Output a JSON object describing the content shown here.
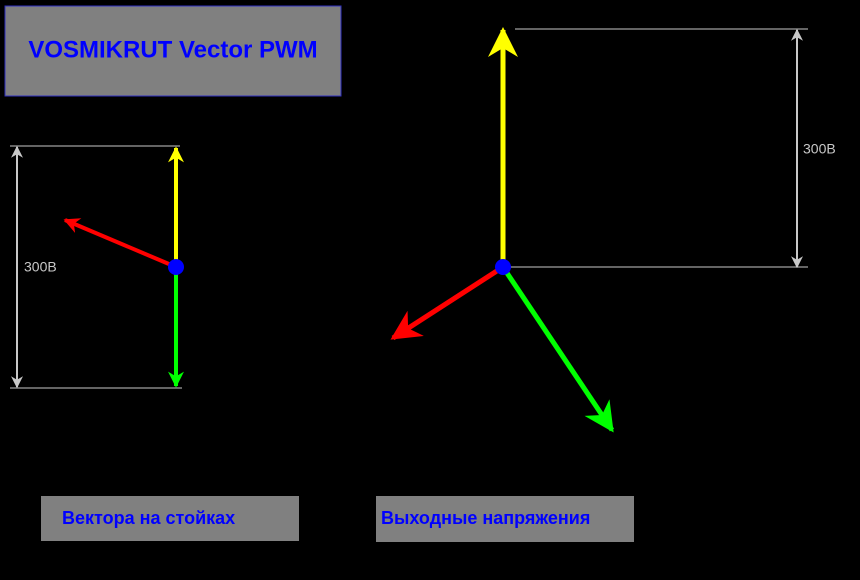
{
  "title": "VOSMIKRUT Vector PWM",
  "left_diagram": {
    "dimension_label": "300В"
  },
  "right_diagram": {
    "dimension_label": "300В"
  },
  "buttons": [
    "Вектора на стойках",
    "Выходные напряжения"
  ]
}
